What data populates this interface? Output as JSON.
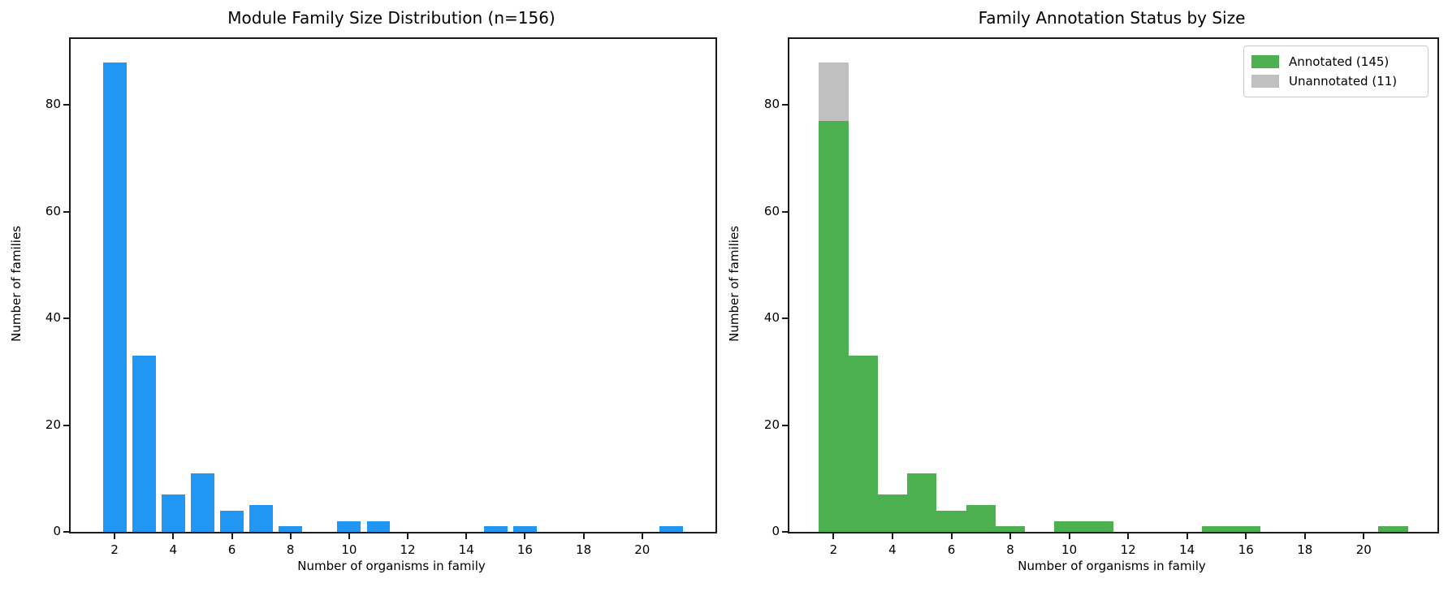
{
  "figure": {
    "background": "#ffffff",
    "text_color": "#000000",
    "axis_color": "#1a1a1a"
  },
  "chart_data": [
    {
      "type": "bar",
      "title": "Module Family Size Distribution (n=156)",
      "xlabel": "Number of organisms in family",
      "ylabel": "Number of families",
      "x": [
        2,
        3,
        4,
        5,
        6,
        7,
        8,
        10,
        11,
        15,
        16,
        21
      ],
      "values": [
        88,
        33,
        7,
        11,
        4,
        5,
        1,
        2,
        2,
        1,
        1,
        1
      ],
      "bar_width": 0.8,
      "bar_color": "#2196F3",
      "xlim": [
        0.5,
        22.5
      ],
      "ylim": [
        0,
        92.4
      ],
      "xticks": [
        2,
        4,
        6,
        8,
        10,
        12,
        14,
        16,
        18,
        20
      ],
      "yticks": [
        0,
        20,
        40,
        60,
        80
      ],
      "grid": false,
      "legend": null
    },
    {
      "type": "stacked-bar-histogram",
      "title": "Family Annotation Status by Size",
      "xlabel": "Number of organisms in family",
      "ylabel": "Number of families",
      "x": [
        2,
        3,
        4,
        5,
        6,
        7,
        8,
        10,
        11,
        15,
        16,
        21
      ],
      "series": [
        {
          "name": "Annotated (145)",
          "color": "#4CAF50",
          "values": [
            77,
            33,
            7,
            11,
            4,
            5,
            1,
            2,
            2,
            1,
            1,
            1
          ]
        },
        {
          "name": "Unannotated (11)",
          "color": "#C0C0C0",
          "values": [
            11,
            0,
            0,
            0,
            0,
            0,
            0,
            0,
            0,
            0,
            0,
            0
          ]
        }
      ],
      "bar_width": 1.0,
      "xlim": [
        0.5,
        22.5
      ],
      "ylim": [
        0,
        92.4
      ],
      "xticks": [
        2,
        4,
        6,
        8,
        10,
        12,
        14,
        16,
        18,
        20
      ],
      "yticks": [
        0,
        20,
        40,
        60,
        80
      ],
      "grid": false,
      "legend": {
        "position": "upper-right"
      }
    }
  ]
}
